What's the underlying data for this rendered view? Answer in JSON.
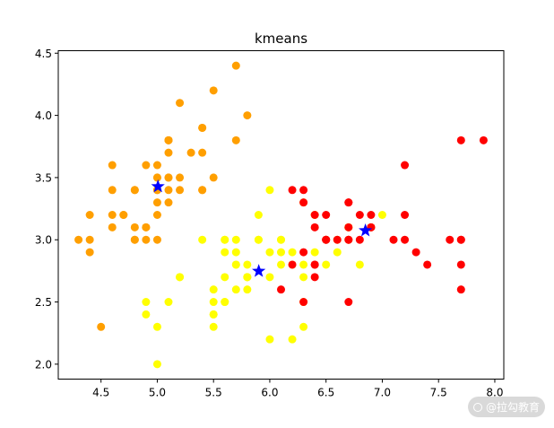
{
  "chart_data": {
    "type": "scatter",
    "title": "kmeans",
    "xlabel": "",
    "ylabel": "",
    "xlim": [
      4.12,
      8.08
    ],
    "ylim": [
      1.88,
      4.52
    ],
    "xticks": [
      "4.5",
      "5.0",
      "5.5",
      "6.0",
      "6.5",
      "7.0",
      "7.5",
      "8.0"
    ],
    "yticks": [
      "2.0",
      "2.5",
      "3.0",
      "3.5",
      "4.0",
      "4.5"
    ],
    "grid": false,
    "series": [
      {
        "color": "#ff9f00",
        "marker": "circle",
        "points": [
          [
            5.1,
            3.5
          ],
          [
            4.9,
            3.0
          ],
          [
            4.7,
            3.2
          ],
          [
            4.6,
            3.1
          ],
          [
            5.0,
            3.6
          ],
          [
            5.4,
            3.9
          ],
          [
            4.6,
            3.4
          ],
          [
            5.0,
            3.4
          ],
          [
            4.4,
            2.9
          ],
          [
            4.9,
            3.1
          ],
          [
            5.4,
            3.7
          ],
          [
            4.8,
            3.4
          ],
          [
            4.8,
            3.0
          ],
          [
            4.3,
            3.0
          ],
          [
            5.8,
            4.0
          ],
          [
            5.7,
            4.4
          ],
          [
            5.4,
            3.9
          ],
          [
            5.1,
            3.5
          ],
          [
            5.7,
            3.8
          ],
          [
            5.1,
            3.8
          ],
          [
            5.4,
            3.4
          ],
          [
            5.1,
            3.7
          ],
          [
            4.6,
            3.6
          ],
          [
            5.1,
            3.3
          ],
          [
            4.8,
            3.4
          ],
          [
            5.0,
            3.0
          ],
          [
            5.0,
            3.4
          ],
          [
            5.2,
            3.5
          ],
          [
            5.2,
            3.4
          ],
          [
            4.7,
            3.2
          ],
          [
            4.8,
            3.1
          ],
          [
            5.4,
            3.4
          ],
          [
            5.2,
            4.1
          ],
          [
            5.5,
            4.2
          ],
          [
            4.9,
            3.1
          ],
          [
            5.0,
            3.2
          ],
          [
            5.5,
            3.5
          ],
          [
            4.4,
            3.0
          ],
          [
            5.1,
            3.4
          ],
          [
            5.0,
            3.5
          ],
          [
            4.5,
            2.3
          ],
          [
            4.4,
            3.2
          ],
          [
            5.0,
            3.5
          ],
          [
            5.1,
            3.8
          ],
          [
            4.8,
            3.0
          ],
          [
            5.1,
            3.8
          ],
          [
            4.6,
            3.2
          ],
          [
            5.3,
            3.7
          ],
          [
            5.0,
            3.3
          ],
          [
            4.9,
            3.6
          ]
        ]
      },
      {
        "color": "#ffff00",
        "marker": "circle",
        "points": [
          [
            5.5,
            2.3
          ],
          [
            5.7,
            2.8
          ],
          [
            6.3,
            3.3
          ],
          [
            4.9,
            2.4
          ],
          [
            6.6,
            2.9
          ],
          [
            5.2,
            2.7
          ],
          [
            5.0,
            2.0
          ],
          [
            5.9,
            3.0
          ],
          [
            6.0,
            2.2
          ],
          [
            5.6,
            2.9
          ],
          [
            5.6,
            3.0
          ],
          [
            5.8,
            2.7
          ],
          [
            6.2,
            2.2
          ],
          [
            5.6,
            2.5
          ],
          [
            5.9,
            3.2
          ],
          [
            6.1,
            2.8
          ],
          [
            6.3,
            2.5
          ],
          [
            6.4,
            2.9
          ],
          [
            6.6,
            3.0
          ],
          [
            6.0,
            2.9
          ],
          [
            5.7,
            2.6
          ],
          [
            5.5,
            2.4
          ],
          [
            5.5,
            2.4
          ],
          [
            5.8,
            2.7
          ],
          [
            6.0,
            2.7
          ],
          [
            5.4,
            3.0
          ],
          [
            6.0,
            3.4
          ],
          [
            6.3,
            2.3
          ],
          [
            5.6,
            3.0
          ],
          [
            5.5,
            2.5
          ],
          [
            5.5,
            2.6
          ],
          [
            6.1,
            3.0
          ],
          [
            5.8,
            2.6
          ],
          [
            5.0,
            2.3
          ],
          [
            5.6,
            2.7
          ],
          [
            5.7,
            3.0
          ],
          [
            5.7,
            2.9
          ],
          [
            6.2,
            2.9
          ],
          [
            5.1,
            2.5
          ],
          [
            5.7,
            2.8
          ],
          [
            4.9,
            2.5
          ],
          [
            5.8,
            2.8
          ],
          [
            6.4,
            3.2
          ],
          [
            6.5,
            3.0
          ],
          [
            6.2,
            2.8
          ],
          [
            6.3,
            2.7
          ],
          [
            6.4,
            3.2
          ],
          [
            6.7,
            3.1
          ],
          [
            6.7,
            3.0
          ],
          [
            6.8,
            2.8
          ],
          [
            7.0,
            3.2
          ],
          [
            5.9,
            3.0
          ],
          [
            6.1,
            2.9
          ],
          [
            6.3,
            2.8
          ],
          [
            6.1,
            3.0
          ],
          [
            6.9,
            3.1
          ],
          [
            5.2,
            2.7
          ],
          [
            6.5,
            2.8
          ],
          [
            5.6,
            2.5
          ],
          [
            6.7,
            3.1
          ],
          [
            5.8,
            2.7
          ]
        ]
      },
      {
        "color": "#ff0000",
        "marker": "circle",
        "points": [
          [
            7.1,
            3.0
          ],
          [
            6.3,
            2.9
          ],
          [
            6.5,
            3.0
          ],
          [
            7.6,
            3.0
          ],
          [
            7.3,
            2.9
          ],
          [
            6.7,
            2.5
          ],
          [
            7.2,
            3.6
          ],
          [
            6.5,
            3.2
          ],
          [
            6.4,
            2.7
          ],
          [
            6.8,
            3.0
          ],
          [
            6.4,
            3.2
          ],
          [
            6.5,
            3.0
          ],
          [
            7.7,
            3.8
          ],
          [
            7.7,
            2.6
          ],
          [
            6.9,
            3.2
          ],
          [
            7.7,
            2.8
          ],
          [
            6.7,
            3.3
          ],
          [
            7.2,
            3.2
          ],
          [
            6.2,
            2.8
          ],
          [
            6.1,
            2.6
          ],
          [
            6.4,
            2.8
          ],
          [
            7.2,
            3.0
          ],
          [
            7.4,
            2.8
          ],
          [
            7.9,
            3.8
          ],
          [
            7.7,
            3.0
          ],
          [
            6.3,
            3.4
          ],
          [
            6.4,
            3.1
          ],
          [
            6.9,
            3.1
          ],
          [
            6.7,
            3.1
          ],
          [
            6.9,
            3.1
          ],
          [
            6.8,
            3.2
          ],
          [
            6.7,
            3.0
          ],
          [
            6.3,
            2.5
          ],
          [
            6.5,
            3.0
          ],
          [
            6.2,
            3.4
          ],
          [
            6.7,
            3.3
          ],
          [
            6.3,
            3.3
          ],
          [
            6.6,
            3.0
          ],
          [
            6.4,
            2.8
          ],
          [
            6.7,
            3.0
          ],
          [
            7.7,
            3.0
          ]
        ]
      },
      {
        "color": "#0000ff",
        "marker": "star",
        "points": [
          [
            5.006,
            3.428
          ],
          [
            5.902,
            2.748
          ],
          [
            6.85,
            3.074
          ]
        ]
      }
    ]
  },
  "watermark": {
    "text": "@拉勾教育"
  }
}
